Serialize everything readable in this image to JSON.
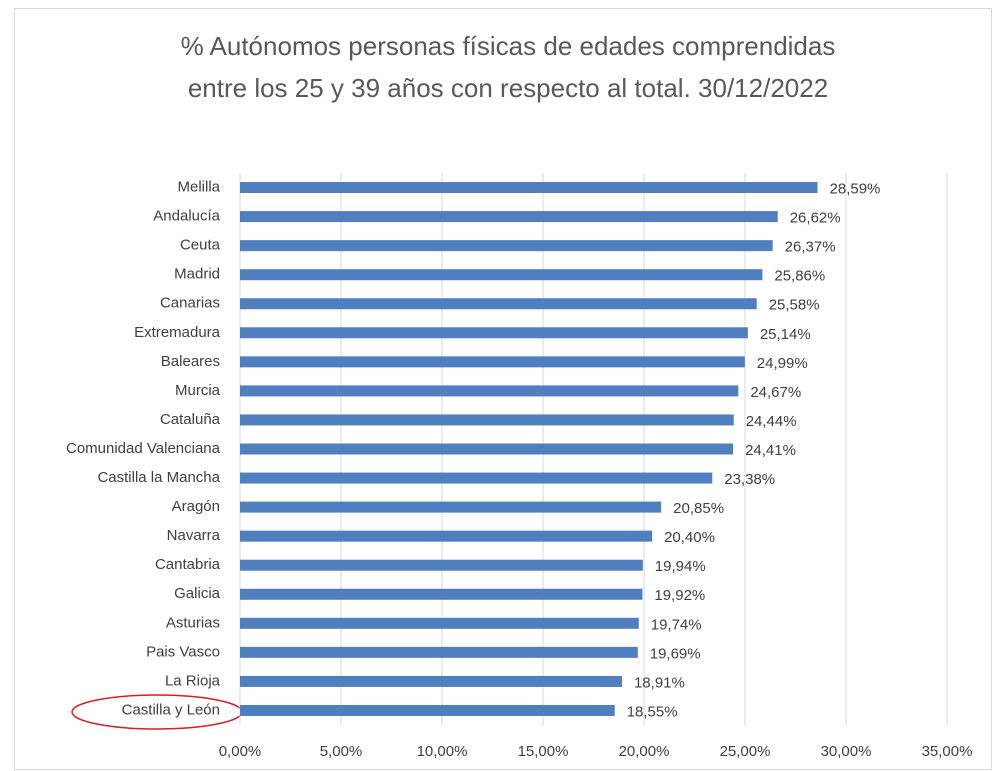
{
  "chart_data": {
    "type": "barh",
    "title": [
      "% Autónomos personas físicas de edades comprendidas",
      "entre los 25 y 39 años con respecto al total. 30/12/2022"
    ],
    "categories": [
      "Melilla",
      "Andalucía",
      "Ceuta",
      "Madrid",
      "Canarias",
      "Extremadura",
      "Baleares",
      "Murcia",
      "Cataluña",
      "Comunidad Valenciana",
      "Castilla la Mancha",
      "Aragón",
      "Navarra",
      "Cantabria",
      "Galicia",
      "Asturias",
      "Pais Vasco",
      "La Rioja",
      "Castilla y León"
    ],
    "values": [
      28.59,
      26.62,
      26.37,
      25.86,
      25.58,
      25.14,
      24.99,
      24.67,
      24.44,
      24.41,
      23.38,
      20.85,
      20.4,
      19.94,
      19.92,
      19.74,
      19.69,
      18.91,
      18.55
    ],
    "value_labels": [
      "28,59%",
      "26,62%",
      "26,37%",
      "25,86%",
      "25,58%",
      "25,14%",
      "24,99%",
      "24,67%",
      "24,44%",
      "24,41%",
      "23,38%",
      "20,85%",
      "20,40%",
      "19,94%",
      "19,92%",
      "19,74%",
      "19,69%",
      "18,91%",
      "18,55%"
    ],
    "color": "#4f7fbf",
    "xlim": [
      0,
      35
    ],
    "xticks": [
      {
        "value": 0,
        "label": "0,00%"
      },
      {
        "value": 5,
        "label": "5,00%"
      },
      {
        "value": 10,
        "label": "10,00%"
      },
      {
        "value": 15,
        "label": "15,00%"
      },
      {
        "value": 20,
        "label": "20,00%"
      },
      {
        "value": 25,
        "label": "25,00%"
      },
      {
        "value": 30,
        "label": "30,00%"
      },
      {
        "value": 35,
        "label": "35,00%"
      }
    ],
    "grid": true
  }
}
